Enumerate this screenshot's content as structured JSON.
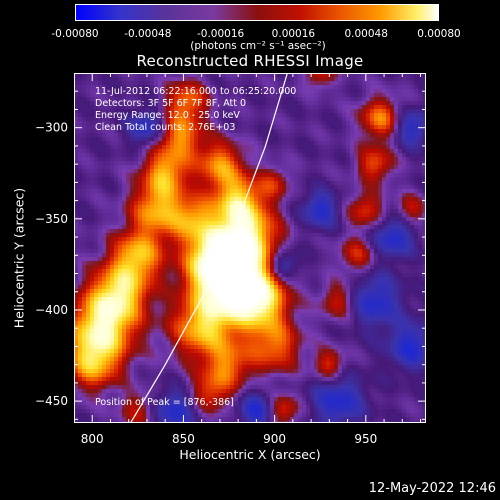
{
  "colorbar": {
    "ticks": [
      "-0.00080",
      "-0.00048",
      "-0.00016",
      "0.00016",
      "0.00048",
      "0.00080"
    ],
    "units": "(photons cm⁻² s⁻¹ asec⁻²)",
    "range": [
      -0.0008,
      0.0008
    ]
  },
  "image_title": "Reconstructed RHESSI Image",
  "info_lines": [
    "11-Jul-2012 06:22:16.000 to 06:25:20.000",
    "Detectors: 3F 5F 6F 7F 8F, Att 0",
    "Energy Range: 12.0 - 25.0 keV",
    "Clean    Total counts: 2.76E+03"
  ],
  "peak_text": "Position of Peak = [876,-386]",
  "timestamp": "12-May-2022 12:46",
  "chart_data": {
    "type": "heatmap",
    "title": "Reconstructed RHESSI Image",
    "xlabel": "Heliocentric X (arcsec)",
    "ylabel": "Heliocentric Y (arcsec)",
    "xlim": [
      790,
      983
    ],
    "ylim": [
      -462,
      -270
    ],
    "xticks": [
      800,
      850,
      900,
      950
    ],
    "xtick_labels": [
      "800",
      "850",
      "900",
      "950"
    ],
    "yticks": [
      -300,
      -350,
      -400,
      -450
    ],
    "ytick_labels": [
      "−300",
      "−350",
      "−400",
      "−450"
    ],
    "peak": [
      876,
      -386
    ],
    "colormap": "blue-purple-red-yellow-white",
    "limb_curve": [
      [
        821,
        -462
      ],
      [
        840,
        -430
      ],
      [
        862,
        -390
      ],
      [
        880,
        -350
      ],
      [
        895,
        -310
      ],
      [
        907,
        -270
      ]
    ]
  }
}
